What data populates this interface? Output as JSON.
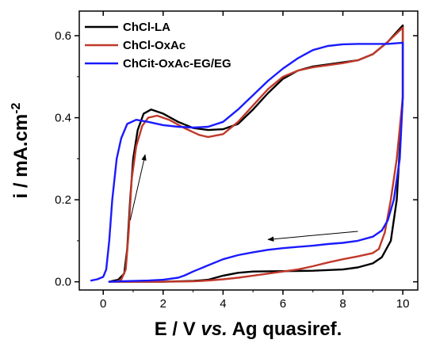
{
  "chart_data": {
    "type": "line",
    "title": "",
    "xlabel": {
      "part1": "E / V ",
      "part2": "vs.",
      "part3": " Ag quasiref."
    },
    "ylabel": {
      "main": "i / mA.cm",
      "superscript": "-2"
    },
    "xlim": [
      -0.8,
      10.5
    ],
    "ylim": [
      -0.02,
      0.66
    ],
    "xticks": [
      0,
      2,
      4,
      6,
      8,
      10
    ],
    "xtick_labels": [
      "0",
      "2",
      "4",
      "6",
      "8",
      "10"
    ],
    "yticks": [
      0.0,
      0.2,
      0.4,
      0.6
    ],
    "ytick_labels": [
      "0.0",
      "0.2",
      "0.4",
      "0.6"
    ],
    "grid": false,
    "legend_position": "top-left",
    "annotations": [
      {
        "type": "arrow",
        "from": [
          0.9,
          0.15
        ],
        "to": [
          1.4,
          0.31
        ]
      },
      {
        "type": "arrow",
        "from": [
          8.5,
          0.123
        ],
        "to": [
          5.5,
          0.103
        ]
      }
    ],
    "series": [
      {
        "name": "ChCl-LA",
        "color": "#000000",
        "points": [
          [
            0.2,
            0.0
          ],
          [
            0.5,
            0.005
          ],
          [
            0.7,
            0.02
          ],
          [
            0.8,
            0.08
          ],
          [
            0.9,
            0.2
          ],
          [
            1.0,
            0.3
          ],
          [
            1.15,
            0.37
          ],
          [
            1.35,
            0.41
          ],
          [
            1.6,
            0.42
          ],
          [
            2.0,
            0.41
          ],
          [
            2.5,
            0.39
          ],
          [
            3.0,
            0.375
          ],
          [
            3.5,
            0.37
          ],
          [
            4.0,
            0.372
          ],
          [
            4.5,
            0.385
          ],
          [
            5.0,
            0.42
          ],
          [
            5.5,
            0.46
          ],
          [
            6.0,
            0.495
          ],
          [
            6.5,
            0.515
          ],
          [
            7.0,
            0.525
          ],
          [
            7.5,
            0.53
          ],
          [
            8.0,
            0.535
          ],
          [
            8.5,
            0.54
          ],
          [
            9.0,
            0.555
          ],
          [
            9.5,
            0.585
          ],
          [
            10.0,
            0.625
          ],
          [
            10.0,
            0.45
          ],
          [
            9.8,
            0.2
          ],
          [
            9.6,
            0.1
          ],
          [
            9.3,
            0.06
          ],
          [
            9.0,
            0.045
          ],
          [
            8.5,
            0.035
          ],
          [
            8.0,
            0.03
          ],
          [
            7.0,
            0.027
          ],
          [
            6.0,
            0.026
          ],
          [
            5.0,
            0.025
          ],
          [
            4.5,
            0.022
          ],
          [
            4.0,
            0.015
          ],
          [
            3.5,
            0.005
          ],
          [
            3.0,
            0.002
          ],
          [
            2.0,
            0.0
          ],
          [
            1.0,
            0.0
          ],
          [
            0.2,
            0.0
          ]
        ]
      },
      {
        "name": "ChCl-OxAc",
        "color": "#c0392b",
        "points": [
          [
            0.4,
            0.0
          ],
          [
            0.6,
            0.005
          ],
          [
            0.75,
            0.03
          ],
          [
            0.85,
            0.12
          ],
          [
            0.95,
            0.25
          ],
          [
            1.1,
            0.33
          ],
          [
            1.3,
            0.38
          ],
          [
            1.5,
            0.4
          ],
          [
            1.8,
            0.405
          ],
          [
            2.2,
            0.395
          ],
          [
            2.7,
            0.375
          ],
          [
            3.2,
            0.358
          ],
          [
            3.5,
            0.353
          ],
          [
            4.0,
            0.36
          ],
          [
            4.5,
            0.39
          ],
          [
            5.0,
            0.43
          ],
          [
            5.5,
            0.47
          ],
          [
            6.0,
            0.5
          ],
          [
            6.5,
            0.515
          ],
          [
            7.0,
            0.523
          ],
          [
            7.5,
            0.528
          ],
          [
            8.0,
            0.533
          ],
          [
            8.5,
            0.54
          ],
          [
            9.0,
            0.555
          ],
          [
            9.5,
            0.585
          ],
          [
            10.0,
            0.62
          ],
          [
            10.0,
            0.45
          ],
          [
            9.8,
            0.3
          ],
          [
            9.6,
            0.2
          ],
          [
            9.4,
            0.12
          ],
          [
            9.2,
            0.08
          ],
          [
            9.0,
            0.07
          ],
          [
            8.5,
            0.062
          ],
          [
            8.0,
            0.055
          ],
          [
            7.5,
            0.047
          ],
          [
            7.0,
            0.038
          ],
          [
            6.5,
            0.03
          ],
          [
            6.0,
            0.025
          ],
          [
            5.5,
            0.02
          ],
          [
            5.0,
            0.015
          ],
          [
            4.5,
            0.01
          ],
          [
            4.0,
            0.006
          ],
          [
            3.5,
            0.003
          ],
          [
            3.0,
            0.001
          ],
          [
            2.0,
            0.0
          ],
          [
            1.0,
            0.0
          ],
          [
            0.4,
            0.0
          ]
        ]
      },
      {
        "name": "ChCit-OxAc-EG/EG",
        "color": "#1a1aff",
        "points": [
          [
            -0.4,
            0.003
          ],
          [
            -0.2,
            0.006
          ],
          [
            0.0,
            0.012
          ],
          [
            0.1,
            0.03
          ],
          [
            0.2,
            0.1
          ],
          [
            0.3,
            0.2
          ],
          [
            0.45,
            0.3
          ],
          [
            0.6,
            0.35
          ],
          [
            0.8,
            0.385
          ],
          [
            1.1,
            0.395
          ],
          [
            1.5,
            0.39
          ],
          [
            2.0,
            0.382
          ],
          [
            2.5,
            0.378
          ],
          [
            3.0,
            0.376
          ],
          [
            3.5,
            0.378
          ],
          [
            4.0,
            0.39
          ],
          [
            4.5,
            0.42
          ],
          [
            5.0,
            0.455
          ],
          [
            5.5,
            0.49
          ],
          [
            6.0,
            0.52
          ],
          [
            6.5,
            0.545
          ],
          [
            7.0,
            0.565
          ],
          [
            7.5,
            0.575
          ],
          [
            8.0,
            0.579
          ],
          [
            8.5,
            0.58
          ],
          [
            9.0,
            0.58
          ],
          [
            9.5,
            0.58
          ],
          [
            10.0,
            0.583
          ],
          [
            10.0,
            0.45
          ],
          [
            9.9,
            0.3
          ],
          [
            9.7,
            0.2
          ],
          [
            9.5,
            0.15
          ],
          [
            9.3,
            0.125
          ],
          [
            9.0,
            0.11
          ],
          [
            8.5,
            0.1
          ],
          [
            8.0,
            0.095
          ],
          [
            7.5,
            0.092
          ],
          [
            7.0,
            0.088
          ],
          [
            6.5,
            0.085
          ],
          [
            6.0,
            0.082
          ],
          [
            5.5,
            0.078
          ],
          [
            5.0,
            0.072
          ],
          [
            4.5,
            0.065
          ],
          [
            4.0,
            0.055
          ],
          [
            3.5,
            0.04
          ],
          [
            3.0,
            0.025
          ],
          [
            2.7,
            0.015
          ],
          [
            2.5,
            0.01
          ],
          [
            2.0,
            0.005
          ],
          [
            1.5,
            0.003
          ],
          [
            1.0,
            0.002
          ],
          [
            0.5,
            0.001
          ],
          [
            0.2,
            0.0
          ]
        ]
      }
    ]
  }
}
